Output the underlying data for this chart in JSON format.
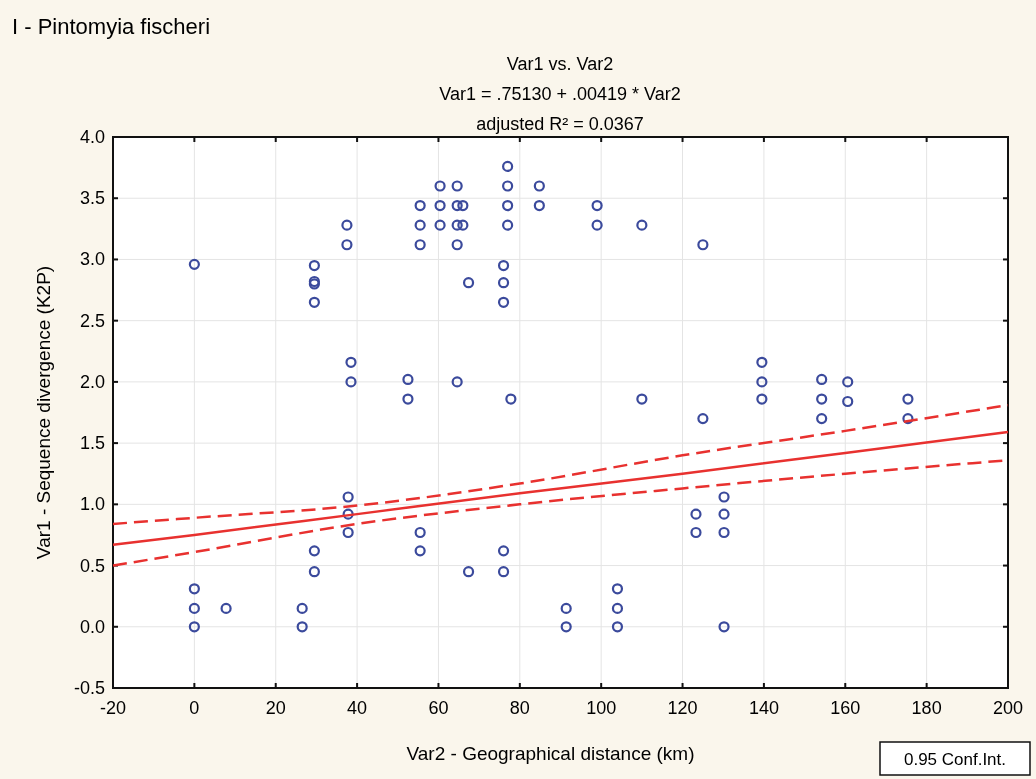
{
  "chart_data": {
    "type": "scatter",
    "title": "I - Pintomyia fischeri",
    "subtitle": "Var1 vs. Var2",
    "xlabel": "Var2 - Geographical distance (km)",
    "ylabel": "Var1 - Sequence divergence (K2P)",
    "annotations": [
      "Var1 = .75130 + .00419 * Var2",
      "adjusted R² = 0.0367",
      "0.95 Conf.Int."
    ],
    "xlim": [
      -20,
      200
    ],
    "xticks": [
      -20,
      0,
      20,
      40,
      60,
      80,
      100,
      120,
      140,
      160,
      180,
      200
    ],
    "ylim": [
      -0.5,
      4.0
    ],
    "yticks": [
      {
        "value": -0.5,
        "label": "-0.5"
      },
      {
        "value": 0,
        "label": "0.0"
      },
      {
        "value": 0.5,
        "label": "0.5"
      },
      {
        "value": 1,
        "label": "1.0"
      },
      {
        "value": 1.5,
        "label": "1.5"
      },
      {
        "value": 2,
        "label": "2.0"
      },
      {
        "value": 2.5,
        "label": "2.5"
      },
      {
        "value": 3,
        "label": "3.0"
      },
      {
        "value": 3.5,
        "label": "3.5"
      },
      {
        "value": 4,
        "label": "4.0"
      }
    ],
    "grid": true,
    "marker": "circle",
    "series": [
      {
        "color": "#3b4a9c",
        "x": [
          0,
          0,
          0,
          0,
          7.8,
          26.5,
          26.5,
          29.5,
          29.5,
          29.5,
          29.5,
          29.5,
          29.5,
          37.5,
          37.5,
          37.8,
          37.8,
          37.8,
          38.5,
          38.5,
          52.5,
          52.5,
          55.5,
          55.5,
          55.5,
          55.5,
          55.5,
          60.4,
          60.4,
          60.4,
          64.6,
          64.6,
          64.6,
          64.6,
          64.6,
          66,
          66,
          67.4,
          67.4,
          76,
          76,
          76,
          76,
          76,
          77,
          77,
          77,
          77,
          77.8,
          84.8,
          84.8,
          91.4,
          91.4,
          99,
          99,
          104,
          104,
          104,
          110,
          110,
          125,
          125,
          123.3,
          123.3,
          130.2,
          130.2,
          130.2,
          130.2,
          139.5,
          139.5,
          139.5,
          154.2,
          154.2,
          154.2,
          160.6,
          160.6,
          175.4,
          175.4
        ],
        "values": [
          2.96,
          0.31,
          0.15,
          0,
          0.15,
          0.15,
          0,
          2.95,
          2.82,
          2.8,
          2.65,
          0.62,
          0.45,
          3.28,
          3.12,
          1.06,
          0.92,
          0.77,
          2.16,
          2,
          2.02,
          1.86,
          3.44,
          3.28,
          3.12,
          0.77,
          0.62,
          3.6,
          3.44,
          3.28,
          3.6,
          3.44,
          3.28,
          3.12,
          2,
          3.44,
          3.28,
          2.81,
          0.45,
          2.95,
          2.81,
          2.65,
          0.62,
          0.45,
          3.76,
          3.6,
          3.44,
          3.28,
          1.86,
          3.6,
          3.44,
          0.15,
          0,
          3.44,
          3.28,
          0.31,
          0.15,
          0,
          3.28,
          1.86,
          3.12,
          1.7,
          0.92,
          0.77,
          1.06,
          0.92,
          0.77,
          0,
          2.16,
          2,
          1.86,
          2.02,
          1.86,
          1.7,
          2,
          1.84,
          1.86,
          1.7
        ]
      },
      {
        "type": "line",
        "color": "#e8312f",
        "line_style": "solid",
        "marker": "none",
        "x": [
          -20,
          0,
          40,
          80,
          120,
          160,
          200
        ],
        "values": [
          0.67,
          0.75,
          0.92,
          1.09,
          1.25,
          1.42,
          1.59
        ]
      },
      {
        "type": "line",
        "color": "#e8312f",
        "line_style": "dashed",
        "marker": "none",
        "x": [
          -20,
          0,
          40,
          80,
          120,
          160,
          200
        ],
        "values": [
          0.84,
          0.89,
          0.99,
          1.17,
          1.4,
          1.6,
          1.81
        ]
      },
      {
        "type": "line",
        "color": "#e8312f",
        "line_style": "dashed",
        "marker": "none",
        "x": [
          -20,
          0,
          40,
          80,
          120,
          160,
          200
        ],
        "values": [
          0.5,
          0.61,
          0.84,
          1.0,
          1.13,
          1.25,
          1.36
        ]
      }
    ]
  }
}
